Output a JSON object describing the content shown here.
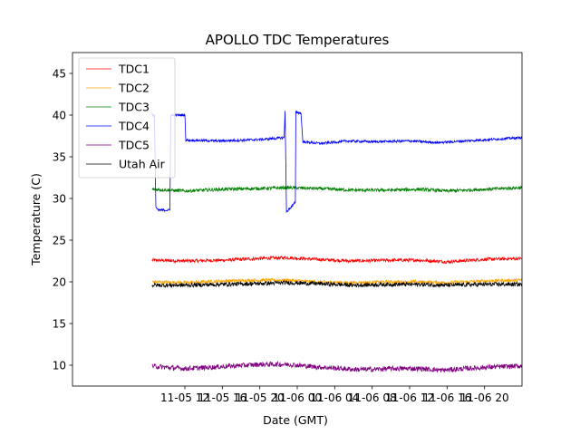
{
  "chart_data": {
    "type": "line",
    "title": "APOLLO TDC Temperatures",
    "xlabel": "Date (GMT)",
    "ylabel": "Temperature (C)",
    "xlim": [
      0,
      48
    ],
    "ylim": [
      7.5,
      47.5
    ],
    "x_unit": "hours since 2019-11-05 00:00 GMT",
    "x_ticks": [
      {
        "x": 12,
        "label": "11-05 12"
      },
      {
        "x": 16,
        "label": "11-05 16"
      },
      {
        "x": 20,
        "label": "11-05 20"
      },
      {
        "x": 24,
        "label": "11-06 00"
      },
      {
        "x": 28,
        "label": "11-06 04"
      },
      {
        "x": 32,
        "label": "11-06 08"
      },
      {
        "x": 36,
        "label": "11-06 12"
      },
      {
        "x": 40,
        "label": "11-06 16"
      },
      {
        "x": 44,
        "label": "11-06 20"
      }
    ],
    "y_ticks": [
      10,
      15,
      20,
      25,
      30,
      35,
      40,
      45
    ],
    "legend_position": "top-left",
    "series": [
      {
        "name": "TDC1",
        "color": "#ff0000",
        "points": [
          [
            8.5,
            22.6
          ],
          [
            12,
            22.5
          ],
          [
            16,
            22.6
          ],
          [
            20,
            22.8
          ],
          [
            23,
            22.9
          ],
          [
            26,
            22.7
          ],
          [
            30,
            22.5
          ],
          [
            34,
            22.6
          ],
          [
            37,
            22.6
          ],
          [
            40,
            22.4
          ],
          [
            44,
            22.7
          ],
          [
            48,
            22.8
          ]
        ],
        "noise": 0.2
      },
      {
        "name": "TDC2",
        "color": "#ffa500",
        "points": [
          [
            8.5,
            20.0
          ],
          [
            12,
            19.9
          ],
          [
            16,
            20.1
          ],
          [
            20,
            20.2
          ],
          [
            23,
            20.2
          ],
          [
            26,
            20.0
          ],
          [
            30,
            19.9
          ],
          [
            34,
            20.0
          ],
          [
            37,
            20.0
          ],
          [
            40,
            19.9
          ],
          [
            44,
            20.1
          ],
          [
            48,
            20.2
          ]
        ],
        "noise": 0.2
      },
      {
        "name": "TDC3",
        "color": "#008000",
        "points": [
          [
            8.5,
            31.1
          ],
          [
            12,
            30.9
          ],
          [
            16,
            31.1
          ],
          [
            20,
            31.2
          ],
          [
            23,
            31.3
          ],
          [
            26,
            31.2
          ],
          [
            30,
            31.0
          ],
          [
            34,
            31.0
          ],
          [
            37,
            31.1
          ],
          [
            40,
            30.9
          ],
          [
            44,
            31.1
          ],
          [
            48,
            31.3
          ]
        ],
        "noise": 0.2
      },
      {
        "name": "TDC4",
        "color": "#0000ff",
        "points": [
          [
            8.5,
            40.0
          ],
          [
            8.75,
            40.0
          ],
          [
            8.9,
            29.0
          ],
          [
            9.1,
            28.6
          ],
          [
            10.4,
            28.6
          ],
          [
            10.5,
            40.0
          ],
          [
            12.0,
            40.0
          ],
          [
            12.1,
            37.0
          ],
          [
            15.5,
            36.9
          ],
          [
            18.5,
            37.0
          ],
          [
            20.5,
            37.1
          ],
          [
            22.6,
            37.3
          ],
          [
            22.7,
            40.5
          ],
          [
            22.85,
            28.4
          ],
          [
            23.8,
            29.5
          ],
          [
            23.85,
            40.4
          ],
          [
            24.4,
            40.2
          ],
          [
            24.6,
            36.8
          ],
          [
            26.5,
            36.6
          ],
          [
            29.5,
            36.9
          ],
          [
            32,
            36.8
          ],
          [
            36,
            36.9
          ],
          [
            39,
            36.7
          ],
          [
            42,
            36.9
          ],
          [
            48,
            37.3
          ]
        ],
        "noise": 0.15
      },
      {
        "name": "TDC5",
        "color": "#800080",
        "points": [
          [
            8.5,
            9.9
          ],
          [
            10.5,
            9.7
          ],
          [
            12,
            9.6
          ],
          [
            14,
            9.7
          ],
          [
            17,
            9.9
          ],
          [
            20,
            10.1
          ],
          [
            23,
            10.1
          ],
          [
            26,
            9.8
          ],
          [
            30,
            9.5
          ],
          [
            32,
            9.5
          ],
          [
            34,
            9.6
          ],
          [
            37,
            9.6
          ],
          [
            39.5,
            9.4
          ],
          [
            42,
            9.6
          ],
          [
            45,
            9.8
          ],
          [
            48,
            9.9
          ]
        ],
        "noise": 0.3
      },
      {
        "name": "Utah Air",
        "color": "#000000",
        "points": [
          [
            8.5,
            19.6
          ],
          [
            12,
            19.6
          ],
          [
            16,
            19.7
          ],
          [
            20,
            19.8
          ],
          [
            23,
            19.9
          ],
          [
            26,
            19.8
          ],
          [
            30,
            19.6
          ],
          [
            34,
            19.7
          ],
          [
            37,
            19.7
          ],
          [
            40,
            19.6
          ],
          [
            44,
            19.7
          ],
          [
            48,
            19.7
          ]
        ],
        "noise": 0.25
      }
    ]
  }
}
